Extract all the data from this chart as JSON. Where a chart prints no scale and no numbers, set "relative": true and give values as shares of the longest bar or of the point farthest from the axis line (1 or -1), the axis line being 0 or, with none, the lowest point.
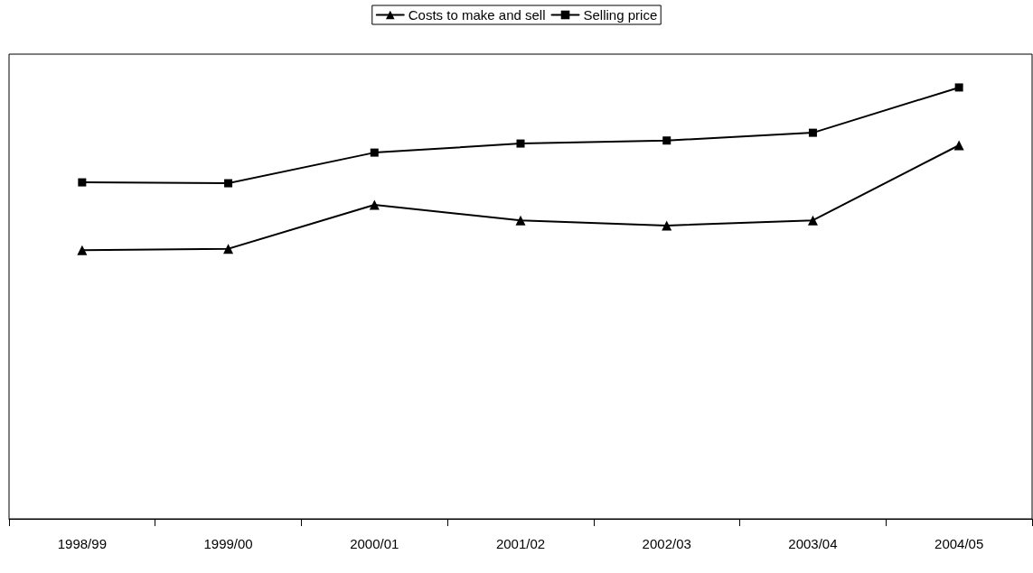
{
  "chart_data": {
    "type": "line",
    "relative": true,
    "categories": [
      "1998/99",
      "1999/00",
      "2000/01",
      "2001/02",
      "2002/03",
      "2003/04",
      "2004/05"
    ],
    "series": [
      {
        "name": "Costs to make and sell",
        "color": "#000000",
        "marker": "triangle",
        "values": [
          0.623,
          0.626,
          0.728,
          0.692,
          0.68,
          0.692,
          0.866
        ]
      },
      {
        "name": "Selling price",
        "color": "#000000",
        "marker": "square",
        "values": [
          0.78,
          0.778,
          0.849,
          0.87,
          0.877,
          0.895,
          1
        ]
      }
    ],
    "legend": "top",
    "grid": false,
    "line_style": "solid"
  }
}
